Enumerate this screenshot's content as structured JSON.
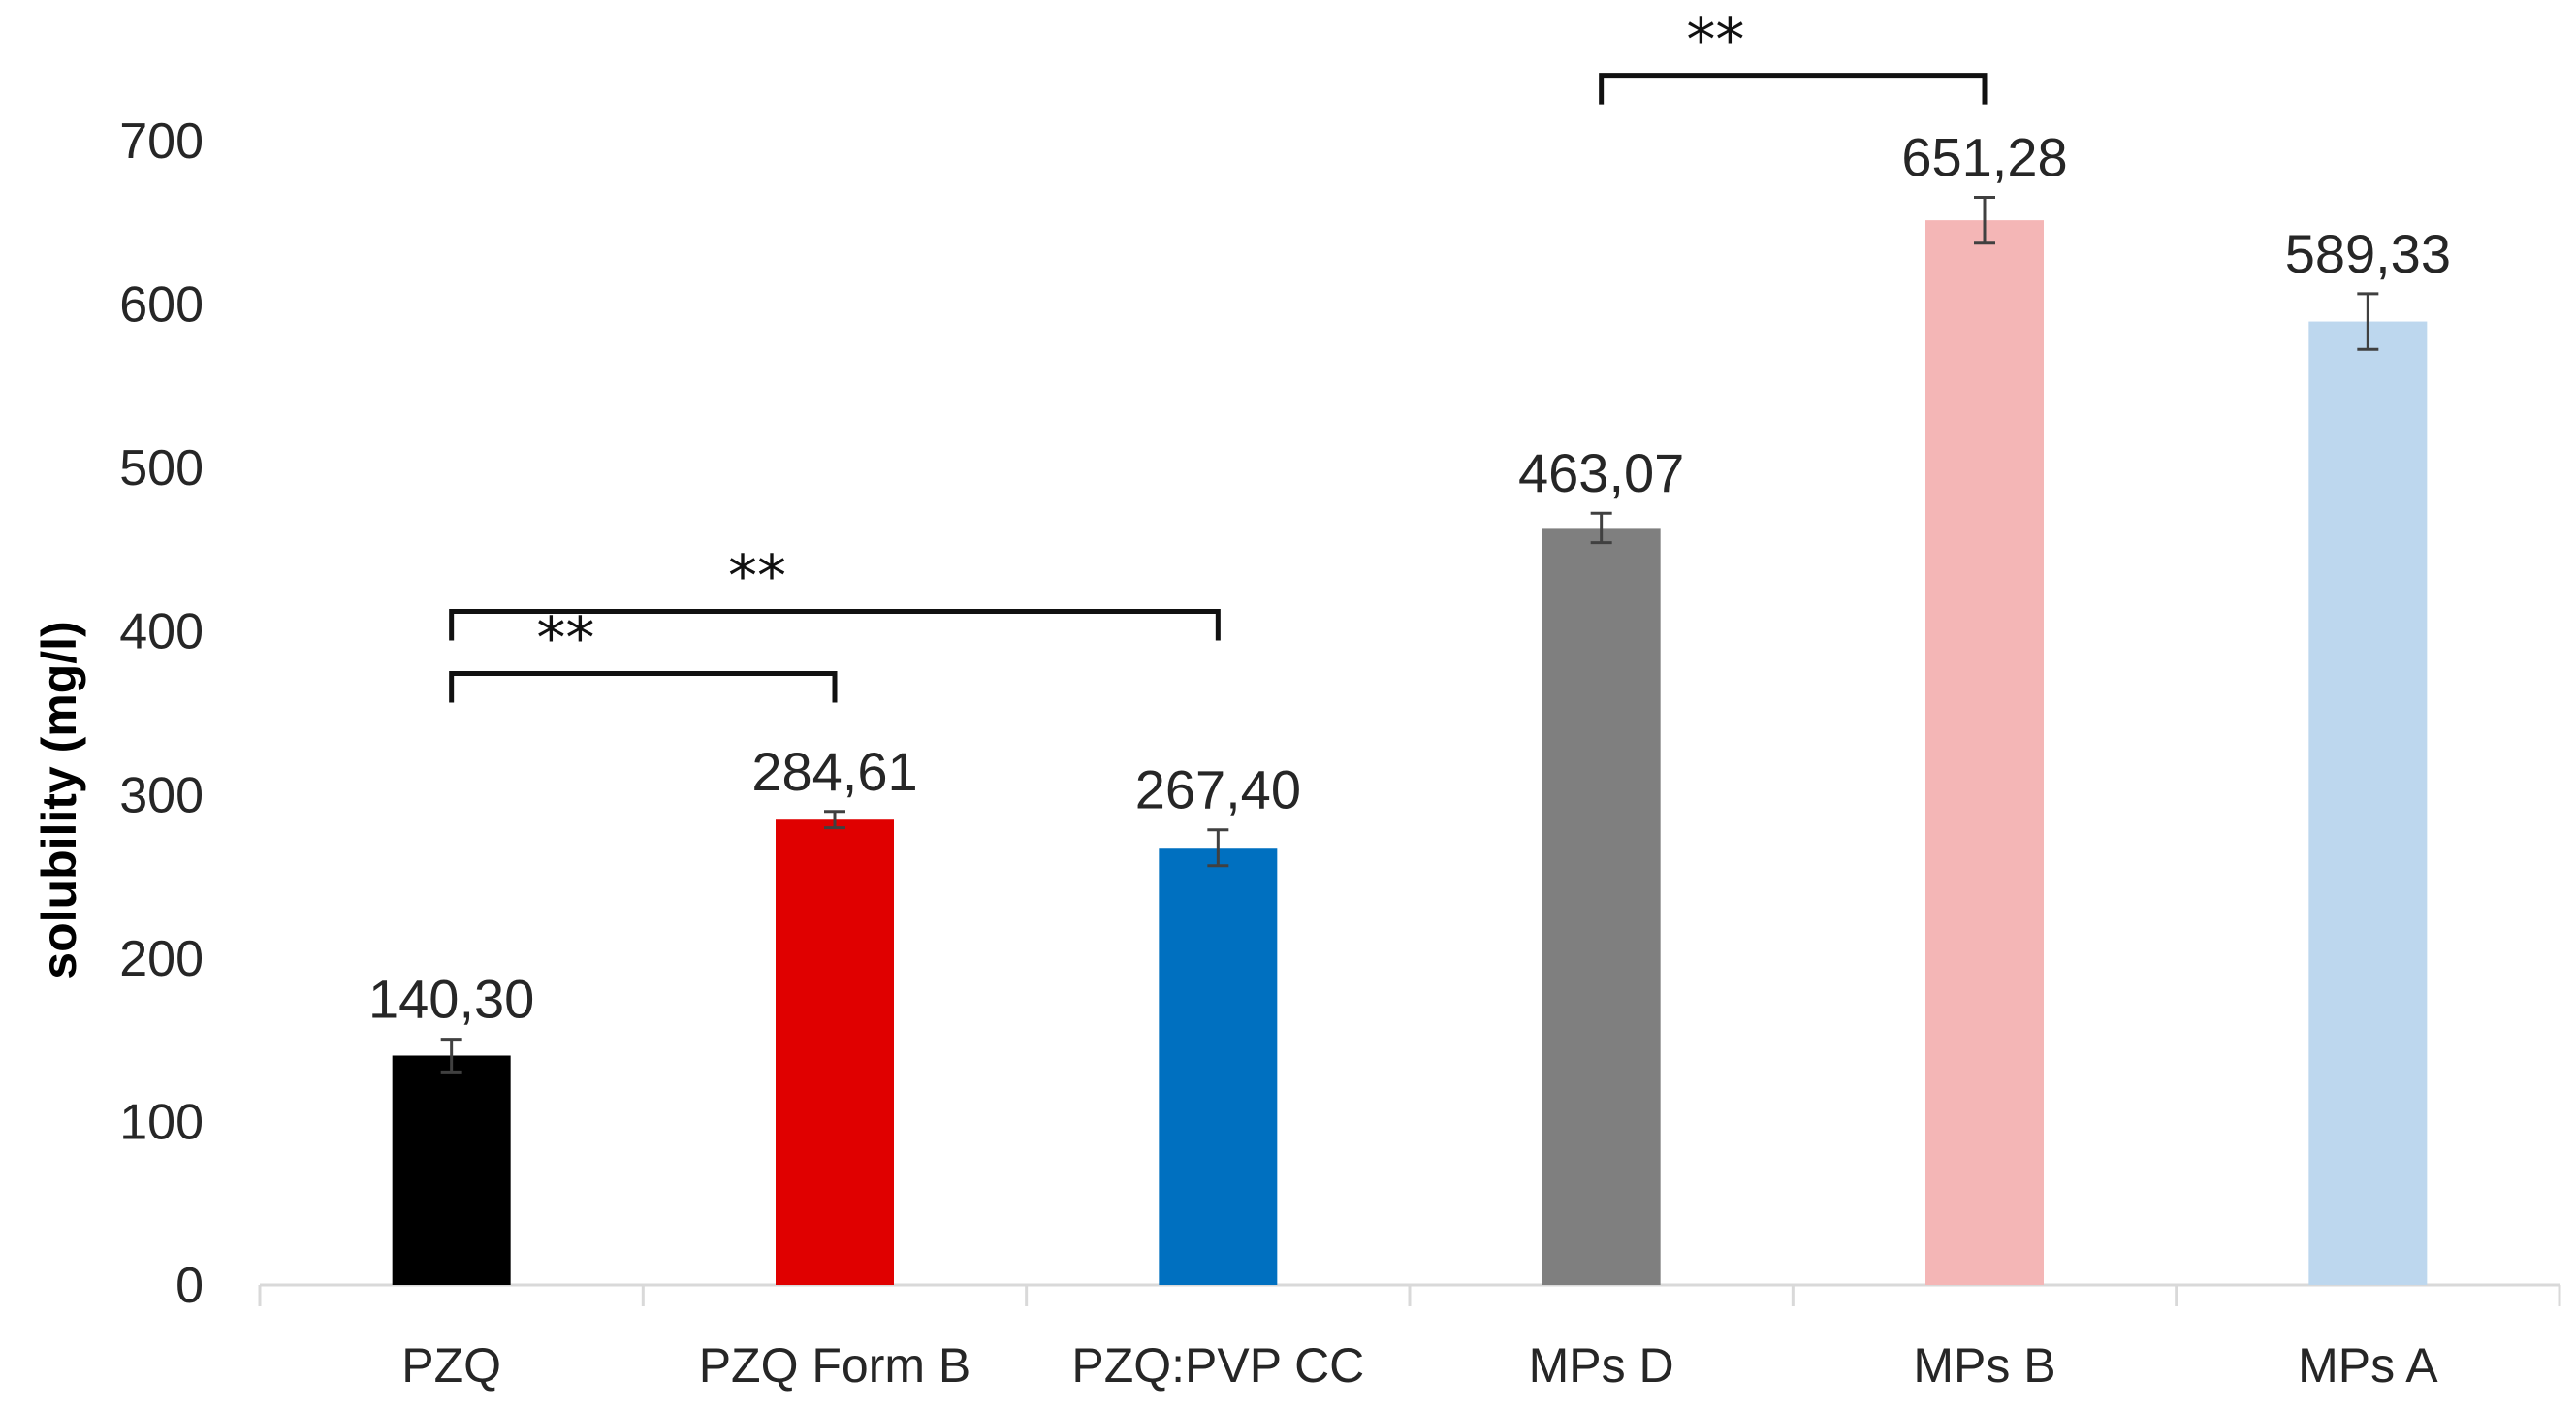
{
  "chart_data": {
    "type": "bar",
    "title": "",
    "xlabel": "",
    "ylabel": "solubility (mg/l)",
    "ylim": [
      0,
      700
    ],
    "yticks": [
      0,
      100,
      200,
      300,
      400,
      500,
      600,
      700
    ],
    "grid": false,
    "categories": [
      "PZQ",
      "PZQ Form B",
      "PZQ:PVP CC",
      "MPs D",
      "MPs B",
      "MPs A"
    ],
    "values": [
      140.3,
      284.61,
      267.4,
      463.07,
      651.28,
      589.33
    ],
    "value_labels": [
      "140,30",
      "284,61",
      "267,40",
      "463,07",
      "651,28",
      "589,33"
    ],
    "errors": [
      10,
      5,
      11,
      9,
      14,
      17
    ],
    "colors": [
      "#000000",
      "#e00000",
      "#0070c0",
      "#7f7f7f",
      "#f4b6b6",
      "#bdd7ee"
    ],
    "significance": [
      {
        "from": 0,
        "to": 2,
        "label": "**",
        "y": 412
      },
      {
        "from": 0,
        "to": 1,
        "label": "**",
        "y": 374
      },
      {
        "from": 3,
        "to": 4,
        "label": "**",
        "y": 740
      }
    ]
  }
}
